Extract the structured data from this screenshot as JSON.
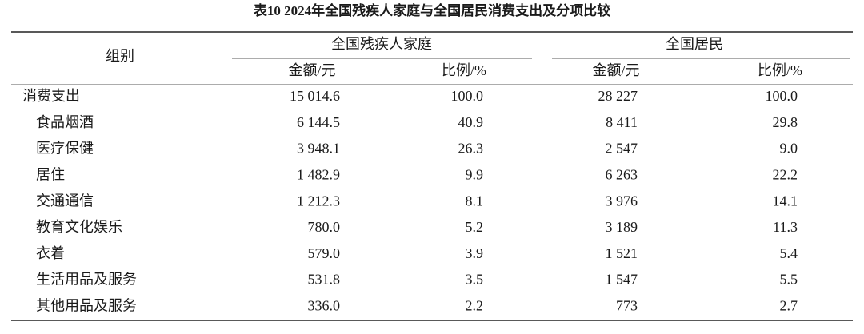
{
  "table": {
    "title": "表10  2024年全国残疾人家庭与全国居民消费支出及分项比较",
    "header": {
      "group_label": "组别",
      "groups": [
        {
          "label": "全国残疾人家庭",
          "columns": [
            "金额/元",
            "比例/%"
          ]
        },
        {
          "label": "全国居民",
          "columns": [
            "金额/元",
            "比例/%"
          ]
        }
      ]
    },
    "rows": [
      [
        "消费支出",
        "15 014.6",
        "100.0",
        "28 227",
        "100.0"
      ],
      [
        "食品烟酒",
        "6 144.5",
        "40.9",
        "8 411",
        "29.8"
      ],
      [
        "医疗保健",
        "3 948.1",
        "26.3",
        "2 547",
        "9.0"
      ],
      [
        "居住",
        "1 482.9",
        "9.9",
        "6 263",
        "22.2"
      ],
      [
        "交通通信",
        "1 212.3",
        "8.1",
        "3 976",
        "14.1"
      ],
      [
        "教育文化娱乐",
        "780.0",
        "5.2",
        "3 189",
        "11.3"
      ],
      [
        "衣着",
        "579.0",
        "3.9",
        "1 521",
        "5.4"
      ],
      [
        "生活用品及服务",
        "531.8",
        "3.5",
        "1 547",
        "5.5"
      ],
      [
        "其他用品及服务",
        "336.0",
        "2.2",
        "773",
        "2.7"
      ]
    ]
  }
}
